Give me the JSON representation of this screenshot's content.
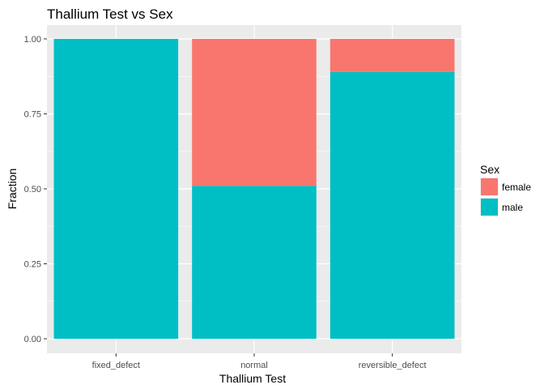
{
  "chart_data": {
    "type": "bar",
    "stacked": true,
    "title": "Thallium Test vs Sex",
    "xlabel": "Thallium Test",
    "ylabel": "Fraction",
    "categories": [
      "fixed_defect",
      "normal",
      "reversible_defect"
    ],
    "ylim": [
      0,
      1
    ],
    "yticks": [
      0,
      0.25,
      0.5,
      0.75,
      1
    ],
    "ytick_labels": [
      "0.00",
      "0.25",
      "0.50",
      "0.75",
      "1.00"
    ],
    "series": [
      {
        "name": "male",
        "color": "#00BFC4",
        "values": [
          1.0,
          0.51,
          0.89
        ]
      },
      {
        "name": "female",
        "color": "#F8766D",
        "values": [
          0.0,
          0.49,
          0.11
        ]
      }
    ],
    "legend": {
      "title": "Sex",
      "position": "right",
      "entries": [
        {
          "label": "female",
          "color": "#F8766D"
        },
        {
          "label": "male",
          "color": "#00BFC4"
        }
      ]
    },
    "grid": true,
    "panel_color": "#EBEBEB"
  }
}
